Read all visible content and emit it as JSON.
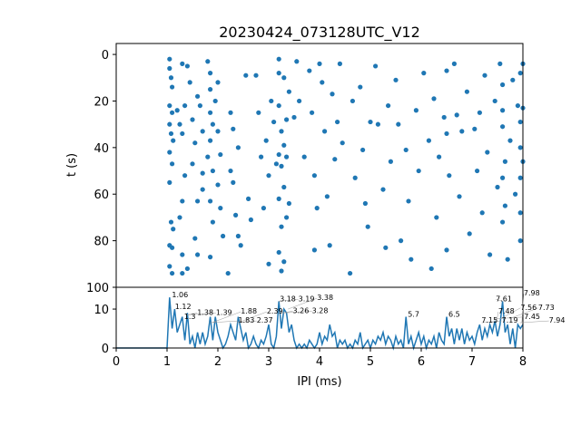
{
  "chart_data": [
    {
      "type": "scatter",
      "title": "20230424_073128UTC_V12",
      "xlabel": "",
      "ylabel": "t (s)",
      "xlim": [
        0,
        8
      ],
      "ylim": [
        100,
        -4.7
      ],
      "yticks": [
        0,
        20,
        40,
        60,
        80,
        100
      ],
      "color": "#1f77b4",
      "points": [
        [
          1.05,
          2
        ],
        [
          1.05,
          6
        ],
        [
          1.08,
          10
        ],
        [
          1.1,
          14
        ],
        [
          1.05,
          22
        ],
        [
          1.1,
          25
        ],
        [
          1.05,
          30
        ],
        [
          1.08,
          34
        ],
        [
          1.12,
          37
        ],
        [
          1.05,
          42
        ],
        [
          1.1,
          47
        ],
        [
          1.05,
          55
        ],
        [
          1.08,
          72
        ],
        [
          1.12,
          75
        ],
        [
          1.05,
          82
        ],
        [
          1.1,
          83
        ],
        [
          1.05,
          91
        ],
        [
          1.1,
          94
        ],
        [
          1.2,
          24
        ],
        [
          1.25,
          30
        ],
        [
          1.3,
          34
        ],
        [
          1.35,
          22
        ],
        [
          1.3,
          4
        ],
        [
          1.4,
          5
        ],
        [
          1.35,
          52
        ],
        [
          1.3,
          63
        ],
        [
          1.25,
          70
        ],
        [
          1.3,
          86
        ],
        [
          1.4,
          92
        ],
        [
          1.3,
          94
        ],
        [
          1.45,
          12
        ],
        [
          1.5,
          28
        ],
        [
          1.55,
          38
        ],
        [
          1.5,
          47
        ],
        [
          1.6,
          18
        ],
        [
          1.65,
          22
        ],
        [
          1.7,
          33
        ],
        [
          1.7,
          51
        ],
        [
          1.7,
          58
        ],
        [
          1.6,
          63
        ],
        [
          1.55,
          79
        ],
        [
          1.6,
          86
        ],
        [
          1.8,
          3
        ],
        [
          1.85,
          8
        ],
        [
          1.85,
          15
        ],
        [
          1.85,
          25
        ],
        [
          1.9,
          30
        ],
        [
          1.85,
          37
        ],
        [
          1.8,
          44
        ],
        [
          1.9,
          50
        ],
        [
          1.85,
          63
        ],
        [
          1.9,
          72
        ],
        [
          1.85,
          87
        ],
        [
          1.95,
          20
        ],
        [
          2.0,
          12
        ],
        [
          2.0,
          33
        ],
        [
          2.05,
          43
        ],
        [
          2.0,
          56
        ],
        [
          2.05,
          66
        ],
        [
          2.1,
          78
        ],
        [
          2.2,
          94
        ],
        [
          2.25,
          25
        ],
        [
          2.3,
          32
        ],
        [
          2.25,
          50
        ],
        [
          2.3,
          55
        ],
        [
          2.35,
          69
        ],
        [
          2.4,
          78
        ],
        [
          2.45,
          82
        ],
        [
          2.4,
          40
        ],
        [
          2.55,
          9
        ],
        [
          2.6,
          62
        ],
        [
          2.65,
          71
        ],
        [
          2.75,
          9
        ],
        [
          2.8,
          25
        ],
        [
          2.85,
          44
        ],
        [
          2.9,
          66
        ],
        [
          2.95,
          37
        ],
        [
          3.0,
          52
        ],
        [
          3.0,
          90
        ],
        [
          3.05,
          20
        ],
        [
          3.1,
          29
        ],
        [
          3.15,
          47
        ],
        [
          3.2,
          2
        ],
        [
          3.2,
          8
        ],
        [
          3.2,
          22
        ],
        [
          3.25,
          33
        ],
        [
          3.2,
          43
        ],
        [
          3.25,
          48
        ],
        [
          3.2,
          62
        ],
        [
          3.25,
          74
        ],
        [
          3.2,
          85
        ],
        [
          3.25,
          93
        ],
        [
          3.3,
          10
        ],
        [
          3.35,
          28
        ],
        [
          3.3,
          39
        ],
        [
          3.35,
          44
        ],
        [
          3.3,
          57
        ],
        [
          3.35,
          70
        ],
        [
          3.3,
          89
        ],
        [
          3.4,
          16
        ],
        [
          3.4,
          64
        ],
        [
          3.5,
          27
        ],
        [
          3.55,
          3
        ],
        [
          3.6,
          20
        ],
        [
          3.7,
          44
        ],
        [
          3.8,
          7
        ],
        [
          3.85,
          25
        ],
        [
          3.9,
          52
        ],
        [
          3.95,
          66
        ],
        [
          3.9,
          84
        ],
        [
          4.0,
          4
        ],
        [
          4.05,
          12
        ],
        [
          4.1,
          33
        ],
        [
          4.15,
          61
        ],
        [
          4.2,
          82
        ],
        [
          4.25,
          17
        ],
        [
          4.3,
          45
        ],
        [
          4.35,
          29
        ],
        [
          4.4,
          4
        ],
        [
          4.45,
          38
        ],
        [
          4.6,
          94
        ],
        [
          4.65,
          20
        ],
        [
          4.7,
          53
        ],
        [
          4.8,
          14
        ],
        [
          4.85,
          41
        ],
        [
          4.9,
          64
        ],
        [
          4.95,
          74
        ],
        [
          5.0,
          29
        ],
        [
          5.1,
          5
        ],
        [
          5.15,
          30
        ],
        [
          5.25,
          58
        ],
        [
          5.3,
          83
        ],
        [
          5.35,
          22
        ],
        [
          5.4,
          46
        ],
        [
          5.5,
          11
        ],
        [
          5.55,
          30
        ],
        [
          5.6,
          80
        ],
        [
          5.7,
          41
        ],
        [
          5.75,
          63
        ],
        [
          5.8,
          88
        ],
        [
          5.9,
          24
        ],
        [
          5.95,
          50
        ],
        [
          6.05,
          8
        ],
        [
          6.15,
          37
        ],
        [
          6.2,
          92
        ],
        [
          6.25,
          19
        ],
        [
          6.3,
          70
        ],
        [
          6.35,
          44
        ],
        [
          6.45,
          27
        ],
        [
          6.5,
          7
        ],
        [
          6.5,
          34
        ],
        [
          6.55,
          52
        ],
        [
          6.5,
          84
        ],
        [
          6.65,
          4
        ],
        [
          6.7,
          26
        ],
        [
          6.75,
          61
        ],
        [
          6.8,
          33
        ],
        [
          6.9,
          16
        ],
        [
          6.95,
          77
        ],
        [
          7.05,
          32
        ],
        [
          7.1,
          50
        ],
        [
          7.15,
          25
        ],
        [
          7.2,
          68
        ],
        [
          7.25,
          9
        ],
        [
          7.3,
          42
        ],
        [
          7.35,
          86
        ],
        [
          7.45,
          20
        ],
        [
          7.5,
          57
        ],
        [
          7.55,
          4
        ],
        [
          7.6,
          13
        ],
        [
          7.6,
          24
        ],
        [
          7.6,
          31
        ],
        [
          7.65,
          46
        ],
        [
          7.6,
          53
        ],
        [
          7.65,
          65
        ],
        [
          7.6,
          72
        ],
        [
          7.7,
          88
        ],
        [
          7.75,
          37
        ],
        [
          7.8,
          11
        ],
        [
          7.85,
          60
        ],
        [
          7.9,
          22
        ],
        [
          7.95,
          8
        ],
        [
          7.95,
          29
        ],
        [
          7.95,
          40
        ],
        [
          7.95,
          53
        ],
        [
          7.95,
          68
        ],
        [
          7.95,
          80
        ],
        [
          8.0,
          4
        ],
        [
          8.0,
          23
        ],
        [
          8.0,
          46
        ]
      ]
    },
    {
      "type": "line",
      "xlabel": "IPI (ms)",
      "ylabel": "",
      "xlim": [
        0,
        8
      ],
      "ylim": [
        0,
        15.6
      ],
      "xticks": [
        0,
        1,
        2,
        3,
        4,
        5,
        6,
        7,
        8
      ],
      "yticks": [
        0,
        10
      ],
      "color": "#1f77b4",
      "x_start": 0,
      "x_step": 0.05,
      "values": [
        0,
        0,
        0,
        0,
        0,
        0,
        0,
        0,
        0,
        0,
        0,
        0,
        0,
        0,
        0,
        0,
        0,
        0,
        0,
        0,
        0,
        13,
        5,
        10,
        4,
        6,
        8,
        2,
        9,
        1,
        3,
        0,
        4,
        1,
        4,
        1,
        3,
        8,
        2,
        8,
        4,
        2,
        0,
        1,
        3,
        6,
        4,
        2,
        8,
        5,
        2,
        4,
        0,
        1,
        3,
        1,
        0,
        2,
        1,
        3,
        6,
        1,
        0,
        3,
        12,
        5,
        10,
        9,
        4,
        6,
        2,
        0,
        1,
        0,
        1,
        0,
        2,
        1,
        0,
        1,
        4,
        1,
        3,
        2,
        6,
        3,
        4,
        0,
        2,
        1,
        2,
        0,
        1,
        0,
        2,
        1,
        4,
        0,
        1,
        2,
        0,
        2,
        1,
        3,
        2,
        4,
        1,
        3,
        2,
        0,
        3,
        1,
        2,
        0,
        8,
        1,
        3,
        0,
        2,
        4,
        1,
        3,
        0,
        2,
        1,
        3,
        0,
        4,
        2,
        1,
        8,
        3,
        5,
        1,
        5,
        2,
        5,
        1,
        4,
        2,
        3,
        1,
        4,
        6,
        2,
        5,
        3,
        6,
        4,
        7,
        3,
        6,
        12,
        4,
        6,
        1,
        5,
        0,
        6,
        5,
        6
      ],
      "annotations": [
        {
          "x": 1.06,
          "y": 13,
          "text": "1.06"
        },
        {
          "x": 1.12,
          "y": 10,
          "text": "1.12"
        },
        {
          "x": 1.3,
          "y": 7.5,
          "text": "1.3"
        },
        {
          "x": 1.38,
          "y": 8.5,
          "text": "1.38"
        },
        {
          "x": 1.39,
          "y": 8.5,
          "text": "1.39"
        },
        {
          "x": 1.83,
          "y": 6.5,
          "text": "1.83"
        },
        {
          "x": 1.88,
          "y": 6.5,
          "text": "1.88"
        },
        {
          "x": 2.37,
          "y": 6.5,
          "text": "2.37"
        },
        {
          "x": 2.39,
          "y": 6.5,
          "text": "2.39"
        },
        {
          "x": 3.18,
          "y": 12,
          "text": "3.18"
        },
        {
          "x": 3.19,
          "y": 12,
          "text": "3.19"
        },
        {
          "x": 3.28,
          "y": 9,
          "text": "3.28"
        },
        {
          "x": 3.26,
          "y": 9,
          "text": "3.26"
        },
        {
          "x": 3.38,
          "y": 10,
          "text": "3.38"
        },
        {
          "x": 5.7,
          "y": 8,
          "text": "5.7"
        },
        {
          "x": 6.5,
          "y": 8,
          "text": "6.5"
        },
        {
          "x": 7.15,
          "y": 6.5,
          "text": "7.15"
        },
        {
          "x": 7.19,
          "y": 6.5,
          "text": "7.19"
        },
        {
          "x": 7.45,
          "y": 7.5,
          "text": "7.45"
        },
        {
          "x": 7.48,
          "y": 6.5,
          "text": "7.48"
        },
        {
          "x": 7.56,
          "y": 7.5,
          "text": "7.56"
        },
        {
          "x": 7.61,
          "y": 12,
          "text": "7.61"
        },
        {
          "x": 7.73,
          "y": 7.5,
          "text": "7.73"
        },
        {
          "x": 7.94,
          "y": 6.5,
          "text": "7.94"
        },
        {
          "x": 7.98,
          "y": 6.5,
          "text": "7.98"
        }
      ]
    }
  ]
}
